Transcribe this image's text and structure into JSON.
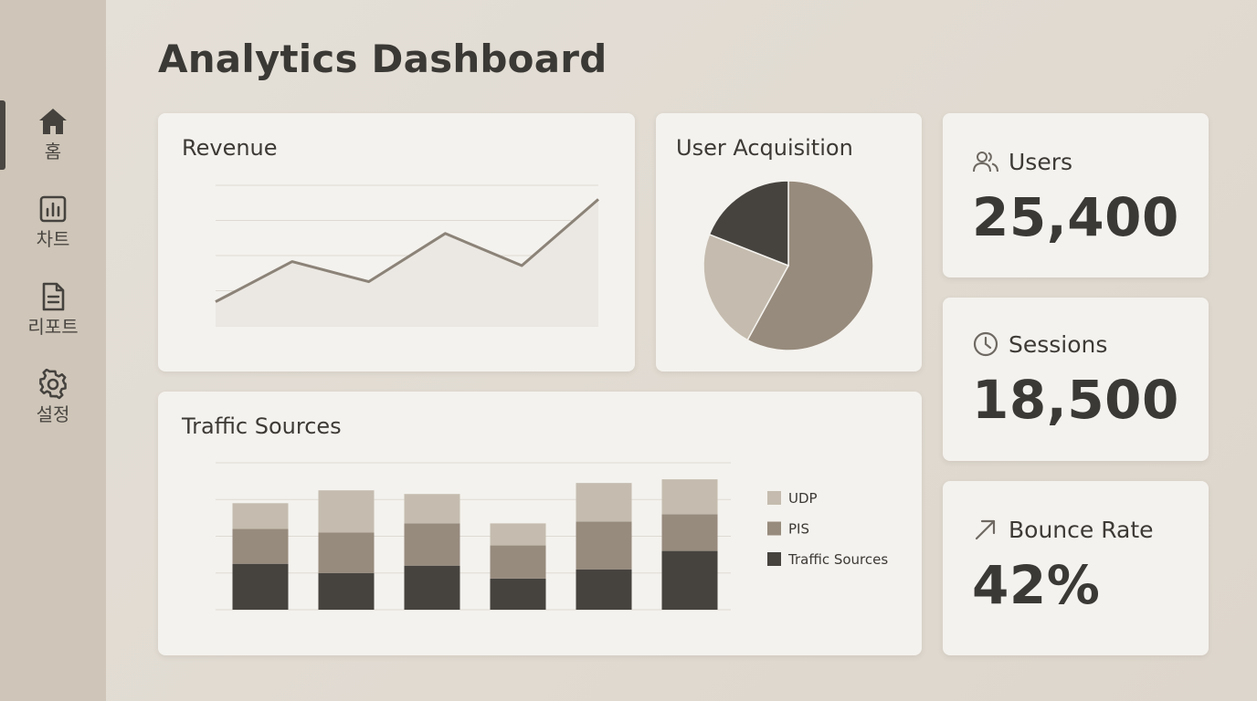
{
  "sidebar": {
    "items": [
      {
        "label": "홈",
        "icon": "home-icon"
      },
      {
        "label": "차트",
        "icon": "chart-icon"
      },
      {
        "label": "리포트",
        "icon": "report-icon"
      },
      {
        "label": "설정",
        "icon": "gear-icon"
      }
    ],
    "active_index": 0
  },
  "page": {
    "title": "Analytics Dashboard"
  },
  "revenue": {
    "title": "Revenue",
    "chart_data": {
      "type": "area",
      "x": [
        0,
        1,
        2,
        3,
        4,
        5
      ],
      "y": [
        1.2,
        3.2,
        2.2,
        4.6,
        3.0,
        6.3
      ],
      "ylim": [
        0,
        7
      ],
      "grid": true,
      "color": "#8c8378",
      "fill": "#ebe8e3"
    }
  },
  "acquisition": {
    "title": "User Acquisition",
    "chart_data": {
      "type": "pie",
      "values": [
        58,
        23,
        19
      ],
      "colors": [
        "#978b7d",
        "#c5bcaf",
        "#46433f"
      ]
    }
  },
  "traffic": {
    "title": "Traffic Sources",
    "chart_data": {
      "type": "bar",
      "stacked": true,
      "categories": [
        "",
        "",
        "",
        "",
        "",
        ""
      ],
      "series": [
        {
          "name": "Traffic Sources",
          "values": [
            12.5,
            10,
            12,
            8.5,
            11,
            16
          ],
          "color": "#46433f"
        },
        {
          "name": "PIS",
          "values": [
            9.5,
            11,
            11.5,
            9,
            13,
            10
          ],
          "color": "#978b7d"
        },
        {
          "name": "UDP",
          "values": [
            7,
            11.5,
            8,
            6,
            10.5,
            9.5
          ],
          "color": "#c5bcaf"
        }
      ],
      "legend": [
        "UDP",
        "PIS",
        "Traffic Sources"
      ],
      "ylim": [
        0,
        40
      ],
      "grid": true
    }
  },
  "stats": [
    {
      "label": "Users",
      "value": "25,400",
      "icon": "users-icon"
    },
    {
      "label": "Sessions",
      "value": "18,500",
      "icon": "clock-icon"
    },
    {
      "label": "Bounce Rate",
      "value": "42%",
      "icon": "trend-arrow-icon"
    }
  ]
}
